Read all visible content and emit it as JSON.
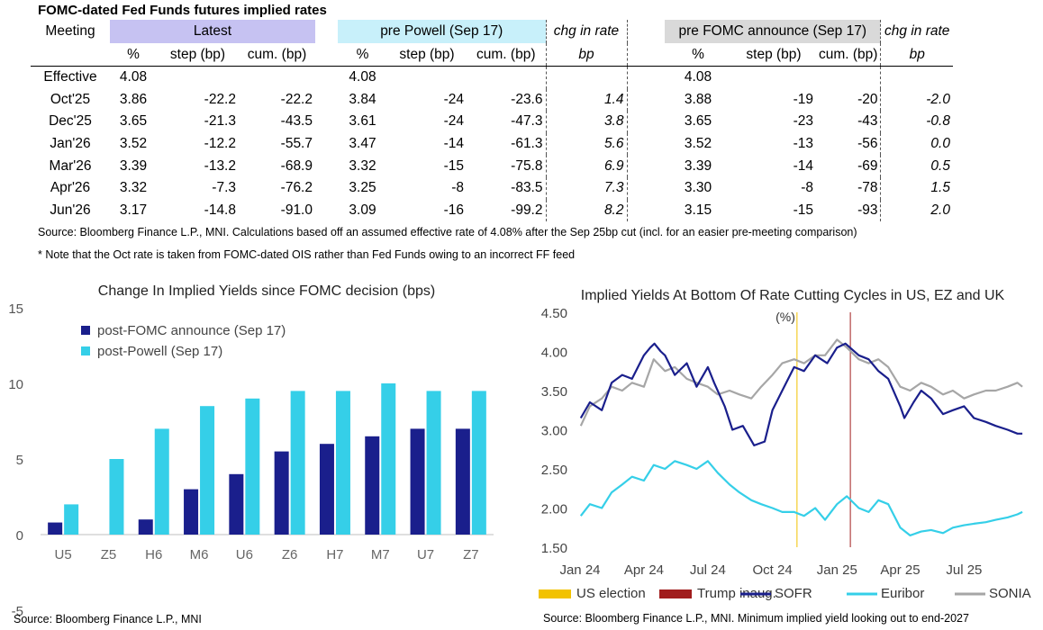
{
  "table": {
    "title": "FOMC-dated Fed Funds futures implied rates",
    "header_meeting": "Meeting",
    "group_latest": "Latest",
    "group_powell": "pre Powell (Sep 17)",
    "group_chg1": "chg in rate",
    "group_fomc": "pre FOMC announce (Sep 17)",
    "group_chg2": "chg in rate",
    "sub_pct": "%",
    "sub_step": "step (bp)",
    "sub_cum": "cum. (bp)",
    "sub_bp": "bp",
    "rows": [
      {
        "m": "Effective",
        "l_pct": "4.08",
        "l_step": "",
        "l_cum": "",
        "p_pct": "4.08",
        "p_step": "",
        "p_cum": "",
        "c1": "",
        "f_pct": "4.08",
        "f_step": "",
        "f_cum": "",
        "c2": ""
      },
      {
        "m": "Oct'25",
        "l_pct": "3.86",
        "l_step": "-22.2",
        "l_cum": "-22.2",
        "p_pct": "3.84",
        "p_step": "-24",
        "p_cum": "-23.6",
        "c1": "1.4",
        "f_pct": "3.88",
        "f_step": "-19",
        "f_cum": "-20",
        "c2": "-2.0"
      },
      {
        "m": "Dec'25",
        "l_pct": "3.65",
        "l_step": "-21.3",
        "l_cum": "-43.5",
        "p_pct": "3.61",
        "p_step": "-24",
        "p_cum": "-47.3",
        "c1": "3.8",
        "f_pct": "3.65",
        "f_step": "-23",
        "f_cum": "-43",
        "c2": "-0.8"
      },
      {
        "m": "Jan'26",
        "l_pct": "3.52",
        "l_step": "-12.2",
        "l_cum": "-55.7",
        "p_pct": "3.47",
        "p_step": "-14",
        "p_cum": "-61.3",
        "c1": "5.6",
        "f_pct": "3.52",
        "f_step": "-13",
        "f_cum": "-56",
        "c2": "0.0"
      },
      {
        "m": "Mar'26",
        "l_pct": "3.39",
        "l_step": "-13.2",
        "l_cum": "-68.9",
        "p_pct": "3.32",
        "p_step": "-15",
        "p_cum": "-75.8",
        "c1": "6.9",
        "f_pct": "3.39",
        "f_step": "-14",
        "f_cum": "-69",
        "c2": "0.5"
      },
      {
        "m": "Apr'26",
        "l_pct": "3.32",
        "l_step": "-7.3",
        "l_cum": "-76.2",
        "p_pct": "3.25",
        "p_step": "-8",
        "p_cum": "-83.5",
        "c1": "7.3",
        "f_pct": "3.30",
        "f_step": "-8",
        "f_cum": "-78",
        "c2": "1.5"
      },
      {
        "m": "Jun'26",
        "l_pct": "3.17",
        "l_step": "-14.8",
        "l_cum": "-91.0",
        "p_pct": "3.09",
        "p_step": "-16",
        "p_cum": "-99.2",
        "c1": "8.2",
        "f_pct": "3.15",
        "f_step": "-15",
        "f_cum": "-93",
        "c2": "2.0"
      }
    ],
    "source_note": "Source: Bloomberg Finance L.P., MNI. Calculations based off an assumed effective rate of 4.08% after the Sep 25bp cut (incl. for an easier pre-meeting comparison)",
    "oct_note": "* Note that the Oct rate is taken from FOMC-dated OIS rather than Fed Funds owing to an incorrect FF feed"
  },
  "colors": {
    "latest_bg": "#c6c2f2",
    "powell_bg": "#c8f0fa",
    "fomc_bg": "#d9d9d9",
    "navy": "#1a1f8c",
    "cyan": "#35cfe8",
    "grey": "#a6a6a6",
    "us_election": "#f2c200",
    "trump_inaug": "#a11d1d"
  },
  "chart_data": [
    {
      "type": "bar",
      "title": "Change In Implied Yields since FOMC decision (bps)",
      "categories": [
        "U5",
        "Z5",
        "H6",
        "M6",
        "U6",
        "Z6",
        "H7",
        "M7",
        "U7",
        "Z7"
      ],
      "series": [
        {
          "name": "post-FOMC announce (Sep 17)",
          "color": "#1a1f8c",
          "values": [
            0.8,
            0,
            1.0,
            3.0,
            4.0,
            5.5,
            6.0,
            6.5,
            7.0,
            7.0
          ]
        },
        {
          "name": "post-Powell (Sep 17)",
          "color": "#35cfe8",
          "values": [
            2.0,
            5.0,
            7.0,
            8.5,
            9.0,
            9.5,
            9.5,
            10.0,
            9.5,
            9.5
          ]
        }
      ],
      "ylim": [
        -5,
        15
      ],
      "yticks": [
        "-5",
        "0",
        "5",
        "10",
        "15"
      ],
      "legend": "top-left",
      "grid": false,
      "source": "Source: Bloomberg Finance L.P., MNI"
    },
    {
      "type": "line",
      "title": "Implied Yields At Bottom Of Rate Cutting Cycles in US, EZ and UK",
      "ylabel": "(%)",
      "ylim": [
        1.5,
        4.5
      ],
      "yticks": [
        "4.50",
        "4.00",
        "3.50",
        "3.00",
        "2.50",
        "2.00",
        "1.50"
      ],
      "xticks": [
        "Jan 24",
        "Apr 24",
        "Jul 24",
        "Oct 24",
        "Jan 25",
        "Apr 25",
        "Jul 25"
      ],
      "grid": false,
      "legend": "bottom",
      "markers": [
        {
          "name": "US election",
          "date": "2024-11-05",
          "color": "#f2c200"
        },
        {
          "name": "Trump inaug.",
          "date": "2025-01-20",
          "color": "#a11d1d"
        }
      ],
      "series": [
        {
          "name": "SOFR",
          "color": "#1a1f8c",
          "x": [
            "2024-01-02",
            "2024-01-15",
            "2024-02-01",
            "2024-02-15",
            "2024-03-01",
            "2024-03-15",
            "2024-04-01",
            "2024-04-10",
            "2024-04-16",
            "2024-04-25",
            "2024-05-01",
            "2024-05-15",
            "2024-06-01",
            "2024-06-15",
            "2024-07-01",
            "2024-07-10",
            "2024-07-25",
            "2024-08-05",
            "2024-08-20",
            "2024-09-05",
            "2024-09-20",
            "2024-10-01",
            "2024-10-15",
            "2024-11-01",
            "2024-11-15",
            "2024-12-01",
            "2024-12-18",
            "2025-01-01",
            "2025-01-13",
            "2025-02-01",
            "2025-02-15",
            "2025-03-01",
            "2025-03-15",
            "2025-04-01",
            "2025-04-07",
            "2025-04-20",
            "2025-05-01",
            "2025-05-15",
            "2025-06-01",
            "2025-06-15",
            "2025-07-01",
            "2025-07-15",
            "2025-08-01",
            "2025-08-15",
            "2025-09-01",
            "2025-09-15",
            "2025-09-22"
          ],
          "y": [
            3.15,
            3.35,
            3.25,
            3.6,
            3.7,
            3.65,
            3.95,
            4.05,
            4.1,
            4.0,
            3.95,
            3.7,
            3.85,
            3.55,
            3.8,
            3.6,
            3.3,
            3.0,
            3.05,
            2.8,
            2.85,
            3.25,
            3.5,
            3.8,
            3.75,
            3.95,
            3.85,
            4.05,
            4.1,
            3.95,
            3.9,
            3.75,
            3.65,
            3.3,
            3.15,
            3.35,
            3.5,
            3.4,
            3.2,
            3.25,
            3.3,
            3.15,
            3.1,
            3.05,
            3.0,
            2.95,
            2.95
          ]
        },
        {
          "name": "Euribor",
          "color": "#35cfe8",
          "x": [
            "2024-01-02",
            "2024-01-15",
            "2024-02-01",
            "2024-02-15",
            "2024-03-01",
            "2024-03-15",
            "2024-04-01",
            "2024-04-15",
            "2024-05-01",
            "2024-05-15",
            "2024-06-01",
            "2024-06-15",
            "2024-07-01",
            "2024-07-15",
            "2024-08-01",
            "2024-08-15",
            "2024-09-01",
            "2024-09-15",
            "2024-10-01",
            "2024-10-15",
            "2024-11-01",
            "2024-11-15",
            "2024-12-01",
            "2024-12-15",
            "2025-01-01",
            "2025-01-15",
            "2025-02-01",
            "2025-02-15",
            "2025-03-01",
            "2025-03-15",
            "2025-04-01",
            "2025-04-15",
            "2025-05-01",
            "2025-05-15",
            "2025-06-01",
            "2025-06-15",
            "2025-07-01",
            "2025-07-15",
            "2025-08-01",
            "2025-08-15",
            "2025-09-01",
            "2025-09-15",
            "2025-09-22"
          ],
          "y": [
            1.9,
            2.05,
            2.0,
            2.2,
            2.3,
            2.4,
            2.35,
            2.55,
            2.5,
            2.6,
            2.55,
            2.5,
            2.6,
            2.45,
            2.3,
            2.2,
            2.1,
            2.05,
            2.0,
            1.95,
            1.95,
            1.9,
            2.0,
            1.85,
            2.05,
            2.15,
            2.0,
            1.95,
            2.1,
            2.05,
            1.75,
            1.65,
            1.7,
            1.72,
            1.68,
            1.75,
            1.78,
            1.8,
            1.82,
            1.85,
            1.88,
            1.92,
            1.95
          ]
        },
        {
          "name": "SONIA",
          "color": "#a6a6a6",
          "x": [
            "2024-01-02",
            "2024-01-15",
            "2024-02-01",
            "2024-02-15",
            "2024-03-01",
            "2024-03-15",
            "2024-04-01",
            "2024-04-15",
            "2024-05-01",
            "2024-05-15",
            "2024-06-01",
            "2024-06-15",
            "2024-07-01",
            "2024-07-15",
            "2024-08-01",
            "2024-08-15",
            "2024-09-01",
            "2024-09-15",
            "2024-10-01",
            "2024-10-15",
            "2024-11-01",
            "2024-11-15",
            "2024-12-01",
            "2024-12-15",
            "2025-01-01",
            "2025-01-15",
            "2025-02-01",
            "2025-02-15",
            "2025-03-01",
            "2025-03-15",
            "2025-04-01",
            "2025-04-15",
            "2025-05-01",
            "2025-05-15",
            "2025-06-01",
            "2025-06-15",
            "2025-07-01",
            "2025-07-15",
            "2025-08-01",
            "2025-08-15",
            "2025-09-01",
            "2025-09-15",
            "2025-09-22"
          ],
          "y": [
            3.05,
            3.3,
            3.4,
            3.55,
            3.5,
            3.6,
            3.55,
            3.9,
            3.75,
            3.8,
            3.65,
            3.6,
            3.55,
            3.45,
            3.5,
            3.45,
            3.4,
            3.55,
            3.7,
            3.85,
            3.9,
            3.85,
            3.95,
            3.95,
            4.15,
            4.05,
            3.9,
            3.85,
            3.9,
            3.8,
            3.55,
            3.5,
            3.6,
            3.55,
            3.45,
            3.5,
            3.4,
            3.45,
            3.5,
            3.5,
            3.55,
            3.6,
            3.55
          ]
        }
      ],
      "source": "Source: Bloomberg Finance L.P., MNI. Minimum implied yield looking out to end-2027"
    }
  ]
}
